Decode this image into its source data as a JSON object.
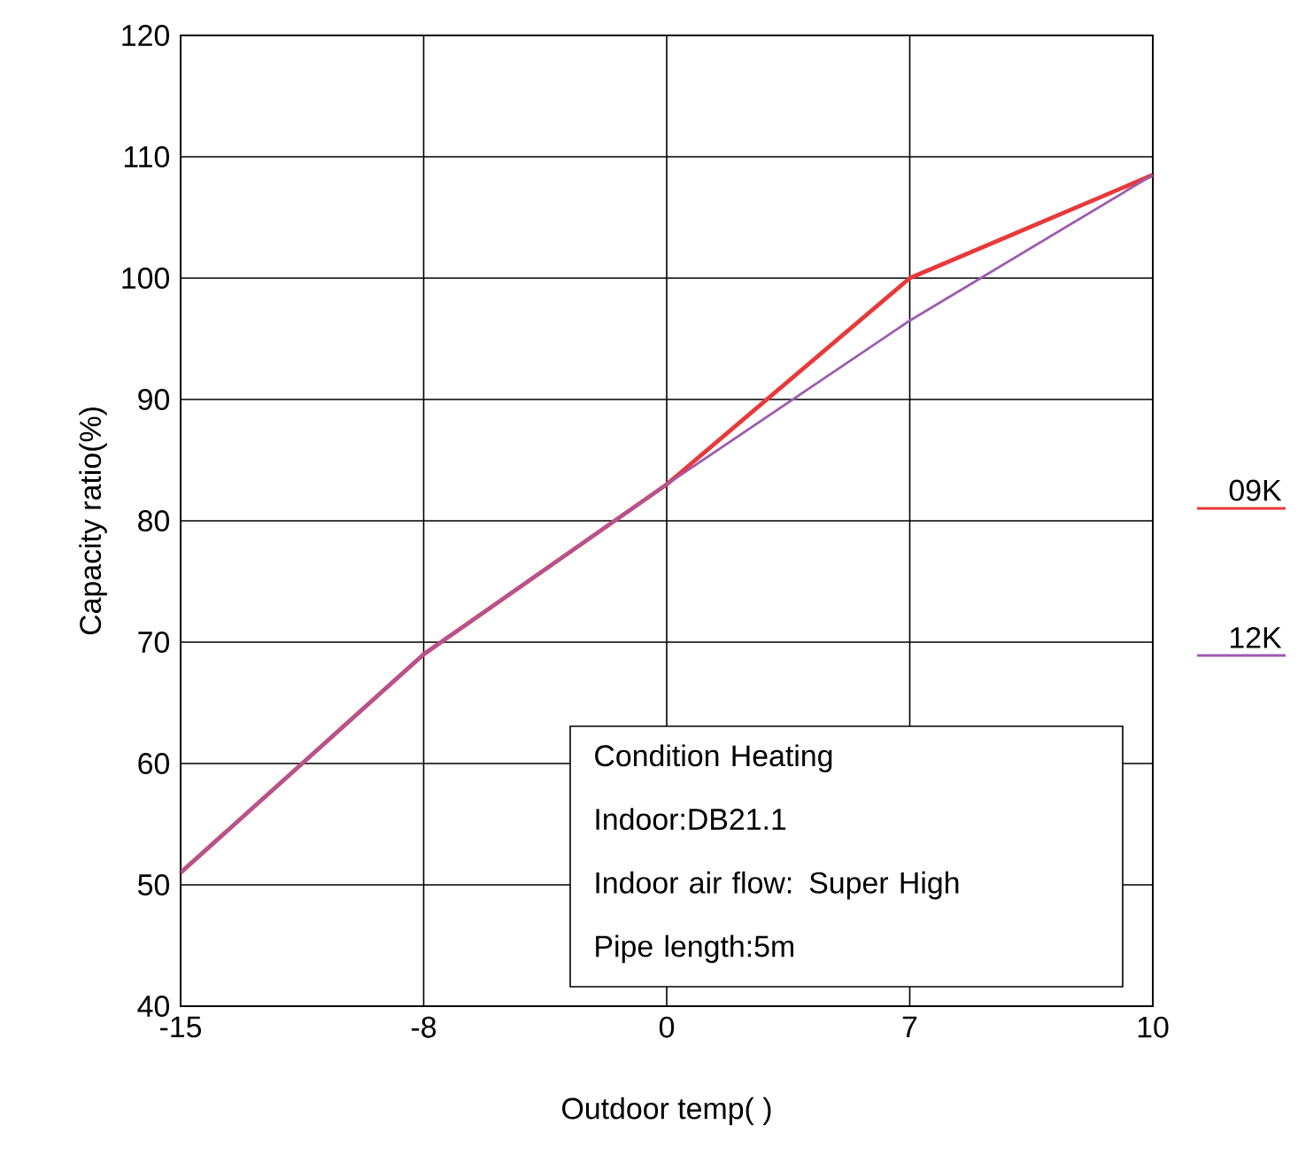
{
  "chart_data": {
    "type": "line",
    "xlabel": "Outdoor temp(   )",
    "ylabel": "Capacity ratio(%)",
    "categories": [
      "-15",
      "-8",
      "0",
      "7",
      "10"
    ],
    "series": [
      {
        "name": "09K",
        "color": "#e8393a",
        "values": [
          51,
          69,
          83,
          100,
          108.5
        ]
      },
      {
        "name": "12K",
        "color": "#9e5bb0",
        "values": [
          51,
          69,
          83,
          96.5,
          108.5
        ]
      }
    ],
    "ylim": [
      40,
      120
    ],
    "yticks": [
      40,
      50,
      60,
      70,
      80,
      90,
      100,
      110,
      120
    ],
    "grid": true,
    "legend": "right",
    "annotations": [
      "Condition  Heating",
      "Indoor:DB21.1",
      "Indoor air flow: Super High",
      "Pipe length:5m"
    ]
  }
}
